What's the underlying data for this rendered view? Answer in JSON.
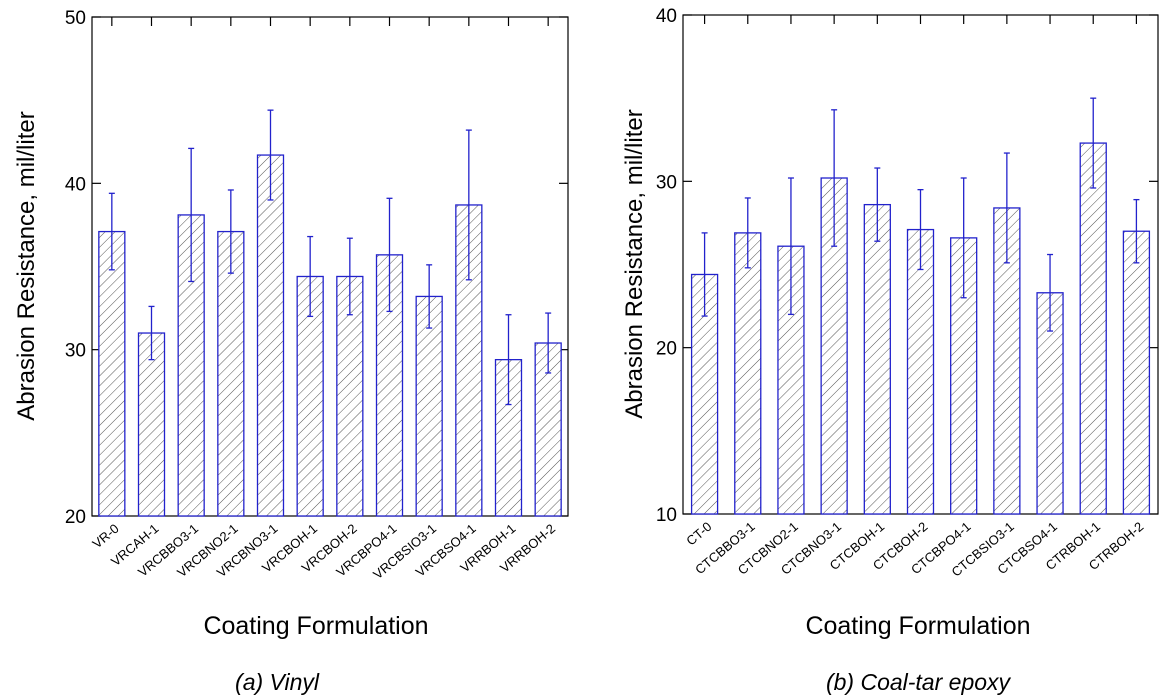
{
  "chart_data": [
    {
      "type": "bar",
      "caption": "(a) Vinyl",
      "xlabel": "Coating Formulation",
      "ylabel": "Abrasion Resistance, mil/liter",
      "ylim": [
        20,
        50
      ],
      "yticks": [
        20,
        30,
        40,
        50
      ],
      "grid": false,
      "categories": [
        "VR-0",
        "VRCAH-1",
        "VRCBBO3-1",
        "VRCBNO2-1",
        "VRCBNO3-1",
        "VRCBOH-1",
        "VRCBOH-2",
        "VRCBPO4-1",
        "VRCBSIO3-1",
        "VRCBSO4-1",
        "VRRBOH-1",
        "VRRBOH-2"
      ],
      "values": [
        37.1,
        31.0,
        38.1,
        37.1,
        41.7,
        34.4,
        34.4,
        35.7,
        33.2,
        38.7,
        29.4,
        30.4
      ],
      "errors": [
        2.3,
        1.6,
        4.0,
        2.5,
        2.7,
        2.4,
        2.3,
        3.4,
        1.9,
        4.5,
        2.7,
        1.8
      ]
    },
    {
      "type": "bar",
      "caption": "(b) Coal-tar epoxy",
      "xlabel": "Coating Formulation",
      "ylabel": "Abrasion Resistance, mil/liter",
      "ylim": [
        10,
        40
      ],
      "yticks": [
        10,
        20,
        30,
        40
      ],
      "grid": false,
      "categories": [
        "CT-0",
        "CTCBBO3-1",
        "CTCBNO2-1",
        "CTCBNO3-1",
        "CTCBOH-1",
        "CTCBOH-2",
        "CTCBPO4-1",
        "CTCBSIO3-1",
        "CTCBSO4-1",
        "CTRBOH-1",
        "CTRBOH-2"
      ],
      "values": [
        24.4,
        26.9,
        26.1,
        30.2,
        28.6,
        27.1,
        26.6,
        28.4,
        23.3,
        32.3,
        27.0
      ],
      "errors": [
        2.5,
        2.1,
        4.1,
        4.1,
        2.2,
        2.4,
        3.6,
        3.3,
        2.3,
        2.7,
        1.9
      ]
    }
  ],
  "colors": {
    "bar_outline": "#2222cc",
    "error_bar": "#2222cc",
    "hatch": "#555555",
    "bar_fill": "#ffffff",
    "axis": "#000000"
  }
}
